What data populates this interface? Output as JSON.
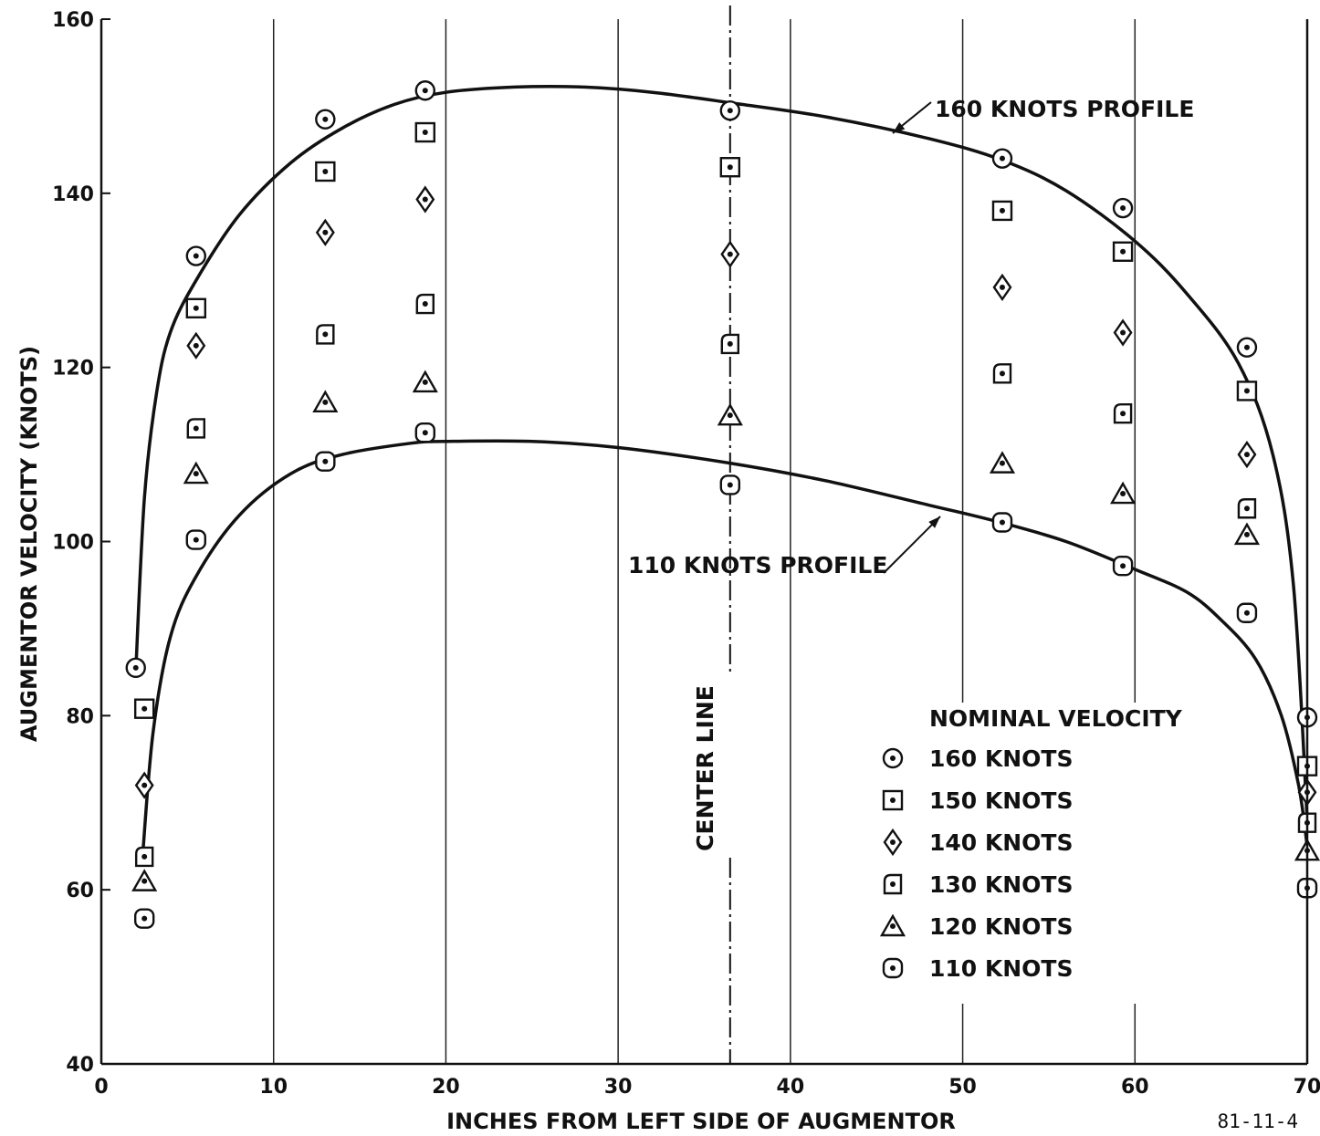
{
  "chart_data": {
    "type": "scatter",
    "title": "",
    "xlabel": "INCHES FROM LEFT SIDE OF AUGMENTOR",
    "ylabel": "AUGMENTOR VELOCITY (KNOTS)",
    "xlim": [
      0,
      70
    ],
    "ylim": [
      40,
      160
    ],
    "x_ticks": [
      0,
      10,
      20,
      30,
      40,
      50,
      60,
      70
    ],
    "y_ticks": [
      40,
      60,
      80,
      100,
      120,
      140,
      160
    ],
    "grid": "vertical",
    "figure_code": "81-11-4",
    "legend": {
      "title": "NOMINAL VELOCITY",
      "position": "lower-right",
      "entries": [
        {
          "marker": "circle",
          "label": "160 KNOTS"
        },
        {
          "marker": "square",
          "label": "150 KNOTS"
        },
        {
          "marker": "diamond",
          "label": "140 KNOTS"
        },
        {
          "marker": "flag",
          "label": "130 KNOTS"
        },
        {
          "marker": "triangle",
          "label": "120 KNOTS"
        },
        {
          "marker": "roundsquare",
          "label": "110 KNOTS"
        }
      ]
    },
    "center_line": {
      "x": 36.5,
      "label": "CENTER LINE"
    },
    "series": [
      {
        "marker": "circle",
        "points": [
          [
            2,
            85.5
          ],
          [
            5.5,
            132.8
          ],
          [
            13,
            148.5
          ],
          [
            18.8,
            151.8
          ],
          [
            36.5,
            149.5
          ],
          [
            52.3,
            144
          ],
          [
            59.3,
            138.3
          ],
          [
            66.5,
            122.3
          ],
          [
            70,
            79.8
          ]
        ]
      },
      {
        "marker": "square",
        "points": [
          [
            2.5,
            80.8
          ],
          [
            5.5,
            126.8
          ],
          [
            13,
            142.5
          ],
          [
            18.8,
            147
          ],
          [
            36.5,
            143
          ],
          [
            52.3,
            138
          ],
          [
            59.3,
            133.3
          ],
          [
            66.5,
            117.3
          ],
          [
            70,
            74.2
          ]
        ]
      },
      {
        "marker": "diamond",
        "points": [
          [
            2.5,
            72
          ],
          [
            5.5,
            122.5
          ],
          [
            13,
            135.5
          ],
          [
            18.8,
            139.3
          ],
          [
            36.5,
            133
          ],
          [
            52.3,
            129.2
          ],
          [
            59.3,
            124
          ],
          [
            66.5,
            110
          ],
          [
            70,
            71.2
          ]
        ]
      },
      {
        "marker": "flag",
        "points": [
          [
            2.5,
            63.8
          ],
          [
            5.5,
            113
          ],
          [
            13,
            123.8
          ],
          [
            18.8,
            127.3
          ],
          [
            36.5,
            122.7
          ],
          [
            52.3,
            119.3
          ],
          [
            59.3,
            114.7
          ],
          [
            66.5,
            103.8
          ],
          [
            70,
            67.7
          ]
        ]
      },
      {
        "marker": "triangle",
        "points": [
          [
            2.5,
            61
          ],
          [
            5.5,
            107.8
          ],
          [
            13,
            116
          ],
          [
            18.8,
            118.3
          ],
          [
            36.5,
            114.5
          ],
          [
            52.3,
            109
          ],
          [
            59.3,
            105.5
          ],
          [
            66.5,
            100.8
          ],
          [
            70,
            64.5
          ]
        ]
      },
      {
        "marker": "roundsquare",
        "points": [
          [
            2.5,
            56.7
          ],
          [
            5.5,
            100.2
          ],
          [
            13,
            109.2
          ],
          [
            18.8,
            112.5
          ],
          [
            36.5,
            106.5
          ],
          [
            52.3,
            102.2
          ],
          [
            59.3,
            97.2
          ],
          [
            66.5,
            91.8
          ],
          [
            70,
            60.2
          ]
        ]
      }
    ],
    "curves": [
      {
        "label": "160 KNOTS PROFILE",
        "points": [
          [
            2,
            85
          ],
          [
            2.5,
            105
          ],
          [
            3.2,
            117
          ],
          [
            4,
            124
          ],
          [
            5.5,
            130
          ],
          [
            8,
            137.5
          ],
          [
            11,
            143.5
          ],
          [
            14,
            147.5
          ],
          [
            17,
            150.2
          ],
          [
            20,
            151.6
          ],
          [
            24,
            152.2
          ],
          [
            28,
            152.2
          ],
          [
            32,
            151.6
          ],
          [
            36.5,
            150.4
          ],
          [
            42,
            148.8
          ],
          [
            48,
            146.3
          ],
          [
            52.3,
            143.8
          ],
          [
            56,
            140.3
          ],
          [
            60,
            134.5
          ],
          [
            63,
            128.5
          ],
          [
            66,
            120.5
          ],
          [
            68,
            110
          ],
          [
            69.2,
            95
          ],
          [
            70,
            68
          ]
        ]
      },
      {
        "label": "110 KNOTS PROFILE",
        "points": [
          [
            2.4,
            64
          ],
          [
            3,
            78
          ],
          [
            4,
            89
          ],
          [
            5.5,
            96
          ],
          [
            8,
            103
          ],
          [
            11,
            107.8
          ],
          [
            14,
            110
          ],
          [
            18,
            111.3
          ],
          [
            20,
            111.5
          ],
          [
            25,
            111.5
          ],
          [
            30,
            110.8
          ],
          [
            36.5,
            109
          ],
          [
            42,
            107
          ],
          [
            48,
            104.2
          ],
          [
            52,
            102.3
          ],
          [
            56,
            100
          ],
          [
            60,
            96.8
          ],
          [
            63,
            94.2
          ],
          [
            65,
            91
          ],
          [
            67,
            86.5
          ],
          [
            68.5,
            80
          ],
          [
            69.5,
            72
          ],
          [
            70,
            65
          ]
        ]
      }
    ],
    "annotations": [
      "160 KNOTS PROFILE",
      "110 KNOTS PROFILE"
    ]
  }
}
